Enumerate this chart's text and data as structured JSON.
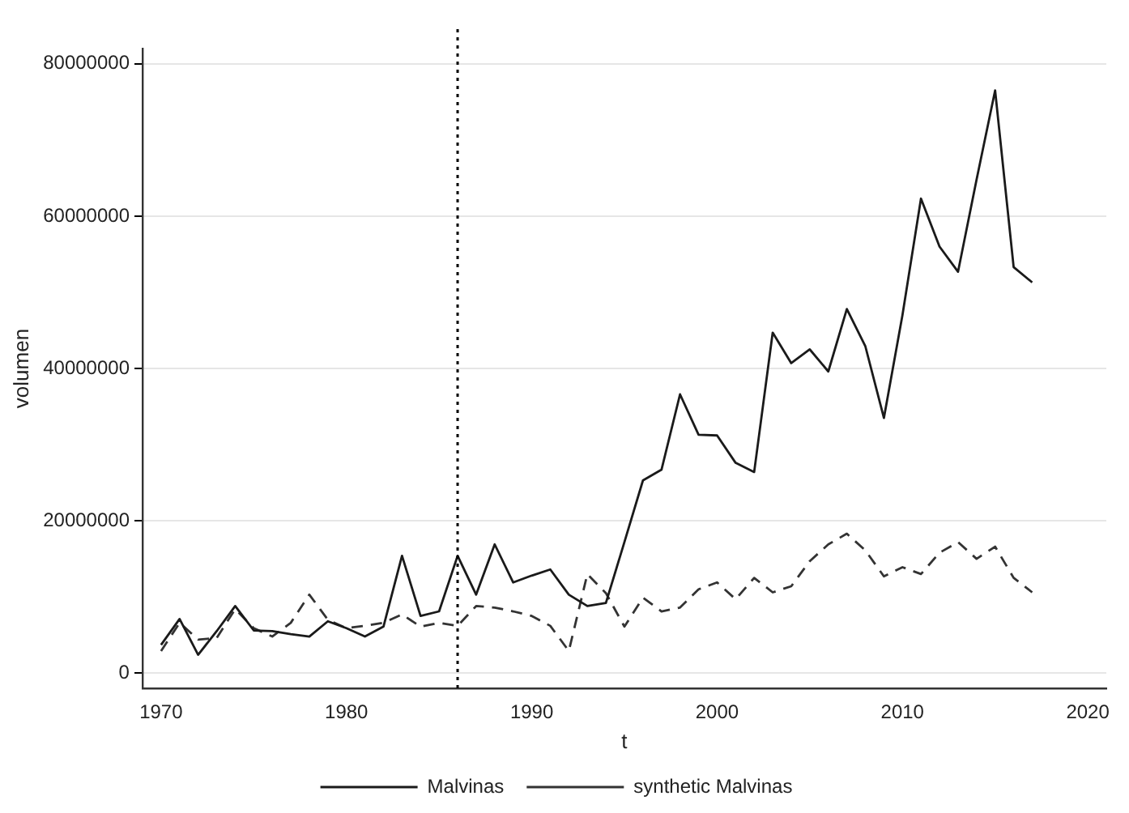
{
  "chart_data": {
    "type": "line",
    "xlabel": "t",
    "ylabel": "volumen",
    "x": [
      1970,
      1971,
      1972,
      1973,
      1974,
      1975,
      1976,
      1977,
      1978,
      1979,
      1980,
      1981,
      1982,
      1983,
      1984,
      1985,
      1986,
      1987,
      1988,
      1989,
      1990,
      1991,
      1992,
      1993,
      1994,
      1995,
      1996,
      1997,
      1998,
      1999,
      2000,
      2001,
      2002,
      2003,
      2004,
      2005,
      2006,
      2007,
      2008,
      2009,
      2010,
      2011,
      2012,
      2013,
      2014,
      2015,
      2016,
      2017
    ],
    "series": [
      {
        "name": "Malvinas",
        "color": "#1a1a1a",
        "line_style": "solid",
        "values": [
          3700000,
          7100000,
          2400000,
          5500000,
          8800000,
          5600000,
          5500000,
          5100000,
          4800000,
          6800000,
          5900000,
          4800000,
          6100000,
          15400000,
          7500000,
          8100000,
          15400000,
          10300000,
          16900000,
          11900000,
          12800000,
          13600000,
          10300000,
          8800000,
          9200000,
          17200000,
          25300000,
          26700000,
          36600000,
          31300000,
          31200000,
          27600000,
          26400000,
          44700000,
          40700000,
          42500000,
          39600000,
          47800000,
          42900000,
          33500000,
          47000000,
          62300000,
          56000000,
          52700000,
          64800000,
          76500000,
          53300000,
          51300000
        ]
      },
      {
        "name": "synthetic Malvinas",
        "color": "#333333",
        "line_style": "dashed",
        "values": [
          2900000,
          6600000,
          4400000,
          4600000,
          8400000,
          5900000,
          4800000,
          6600000,
          10300000,
          7000000,
          5900000,
          6200000,
          6600000,
          7700000,
          6100000,
          6600000,
          6200000,
          8800000,
          8600000,
          8100000,
          7500000,
          6200000,
          2900000,
          13000000,
          10500000,
          6100000,
          9900000,
          8100000,
          8600000,
          11000000,
          11900000,
          9700000,
          12500000,
          10600000,
          11400000,
          14700000,
          16900000,
          18300000,
          16100000,
          12700000,
          13900000,
          13000000,
          15800000,
          17200000,
          15000000,
          16600000,
          12500000,
          10600000
        ]
      }
    ],
    "xlim": [
      1969,
      2021
    ],
    "xticks": [
      1970,
      1980,
      1990,
      2000,
      2010,
      2020
    ],
    "ylim": [
      -2000000,
      82000000
    ],
    "yticks": [
      0,
      20000000,
      40000000,
      60000000,
      80000000
    ],
    "grid": "y",
    "legend": "bottom",
    "marker": "none",
    "ref_lines": [
      {
        "axis": "x",
        "value": 1986,
        "color": "#000000",
        "line_style": "dotted"
      }
    ]
  }
}
